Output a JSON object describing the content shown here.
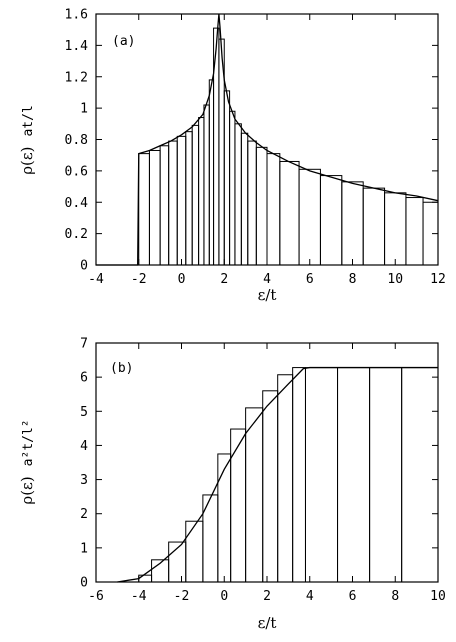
{
  "chart_data": [
    {
      "type": "bar",
      "panel_label": "(a)",
      "xlabel": "ε/t",
      "ylabel_main": "ρ(ε)",
      "ylabel_unit": "at/l",
      "xlim": [
        -4,
        12
      ],
      "ylim": [
        0,
        1.6
      ],
      "xticks": [
        -4,
        -2,
        0,
        2,
        4,
        6,
        8,
        10,
        12
      ],
      "yticks": [
        0,
        0.2,
        0.4,
        0.6,
        0.8,
        1,
        1.2,
        1.4,
        1.6
      ],
      "histogram": [
        {
          "x0": -2.0,
          "x1": -1.5,
          "y": 0.71
        },
        {
          "x0": -1.5,
          "x1": -1.0,
          "y": 0.73
        },
        {
          "x0": -1.0,
          "x1": -0.6,
          "y": 0.76
        },
        {
          "x0": -0.6,
          "x1": -0.2,
          "y": 0.79
        },
        {
          "x0": -0.2,
          "x1": 0.2,
          "y": 0.82
        },
        {
          "x0": 0.2,
          "x1": 0.5,
          "y": 0.85
        },
        {
          "x0": 0.5,
          "x1": 0.8,
          "y": 0.89
        },
        {
          "x0": 0.8,
          "x1": 1.05,
          "y": 0.94
        },
        {
          "x0": 1.05,
          "x1": 1.3,
          "y": 1.02
        },
        {
          "x0": 1.3,
          "x1": 1.5,
          "y": 1.18
        },
        {
          "x0": 1.5,
          "x1": 1.75,
          "y": 1.51
        },
        {
          "x0": 1.75,
          "x1": 2.0,
          "y": 1.44
        },
        {
          "x0": 2.0,
          "x1": 2.25,
          "y": 1.11
        },
        {
          "x0": 2.25,
          "x1": 2.5,
          "y": 0.98
        },
        {
          "x0": 2.5,
          "x1": 2.8,
          "y": 0.9
        },
        {
          "x0": 2.8,
          "x1": 3.1,
          "y": 0.84
        },
        {
          "x0": 3.1,
          "x1": 3.5,
          "y": 0.79
        },
        {
          "x0": 3.5,
          "x1": 4.0,
          "y": 0.75
        },
        {
          "x0": 4.0,
          "x1": 4.6,
          "y": 0.71
        },
        {
          "x0": 4.6,
          "x1": 5.5,
          "y": 0.66
        },
        {
          "x0": 5.5,
          "x1": 6.5,
          "y": 0.61
        },
        {
          "x0": 6.5,
          "x1": 7.5,
          "y": 0.57
        },
        {
          "x0": 7.5,
          "x1": 8.5,
          "y": 0.53
        },
        {
          "x0": 8.5,
          "x1": 9.5,
          "y": 0.49
        },
        {
          "x0": 9.5,
          "x1": 10.5,
          "y": 0.46
        },
        {
          "x0": 10.5,
          "x1": 11.3,
          "y": 0.43
        },
        {
          "x0": 11.3,
          "x1": 12.0,
          "y": 0.4
        }
      ],
      "curve": {
        "x": [
          -4,
          -2.05,
          -2.0,
          -1.5,
          -1.0,
          -0.5,
          0.0,
          0.5,
          1.0,
          1.3,
          1.5,
          1.62,
          1.7,
          1.75,
          1.8,
          1.9,
          2.0,
          2.2,
          2.5,
          3.0,
          3.5,
          4.0,
          5.0,
          6.0,
          7.0,
          8.0,
          9.0,
          10.0,
          11.0,
          12.0
        ],
        "y": [
          0,
          0,
          0.71,
          0.73,
          0.76,
          0.79,
          0.83,
          0.88,
          0.96,
          1.08,
          1.22,
          1.38,
          1.52,
          1.6,
          1.52,
          1.32,
          1.18,
          1.04,
          0.93,
          0.84,
          0.78,
          0.73,
          0.66,
          0.6,
          0.56,
          0.52,
          0.49,
          0.46,
          0.44,
          0.41
        ]
      }
    },
    {
      "type": "bar",
      "panel_label": "(b)",
      "xlabel": "ε/t",
      "ylabel_main": "ρ(ε)",
      "ylabel_unit": "a²t/l²",
      "xlim": [
        -6,
        10
      ],
      "ylim": [
        0,
        7
      ],
      "xticks": [
        -6,
        -4,
        -2,
        0,
        2,
        4,
        6,
        8,
        10
      ],
      "yticks": [
        0,
        1,
        2,
        3,
        4,
        5,
        6,
        7
      ],
      "histogram": [
        {
          "x0": -4.0,
          "x1": -3.4,
          "y": 0.2
        },
        {
          "x0": -3.4,
          "x1": -2.6,
          "y": 0.65
        },
        {
          "x0": -2.6,
          "x1": -1.8,
          "y": 1.17
        },
        {
          "x0": -1.8,
          "x1": -1.0,
          "y": 1.78
        },
        {
          "x0": -1.0,
          "x1": -0.3,
          "y": 2.55
        },
        {
          "x0": -0.3,
          "x1": 0.3,
          "y": 3.75
        },
        {
          "x0": 0.3,
          "x1": 1.0,
          "y": 4.48
        },
        {
          "x0": 1.0,
          "x1": 1.8,
          "y": 5.1
        },
        {
          "x0": 1.8,
          "x1": 2.5,
          "y": 5.6
        },
        {
          "x0": 2.5,
          "x1": 3.2,
          "y": 6.07
        },
        {
          "x0": 3.2,
          "x1": 3.8,
          "y": 6.28
        },
        {
          "x0": 3.8,
          "x1": 5.3,
          "y": 6.28
        },
        {
          "x0": 5.3,
          "x1": 6.8,
          "y": 6.28
        },
        {
          "x0": 6.8,
          "x1": 8.3,
          "y": 6.28
        },
        {
          "x0": 8.3,
          "x1": 10.0,
          "y": 6.28
        }
      ],
      "curve": {
        "x": [
          -5.0,
          -4.0,
          -3.0,
          -2.0,
          -1.0,
          0.0,
          1.0,
          2.0,
          3.0,
          3.7,
          4.0,
          6.0,
          8.0,
          10.0
        ],
        "y": [
          0.0,
          0.1,
          0.55,
          1.1,
          2.0,
          3.3,
          4.35,
          5.15,
          5.8,
          6.25,
          6.28,
          6.28,
          6.28,
          6.28
        ]
      }
    }
  ]
}
